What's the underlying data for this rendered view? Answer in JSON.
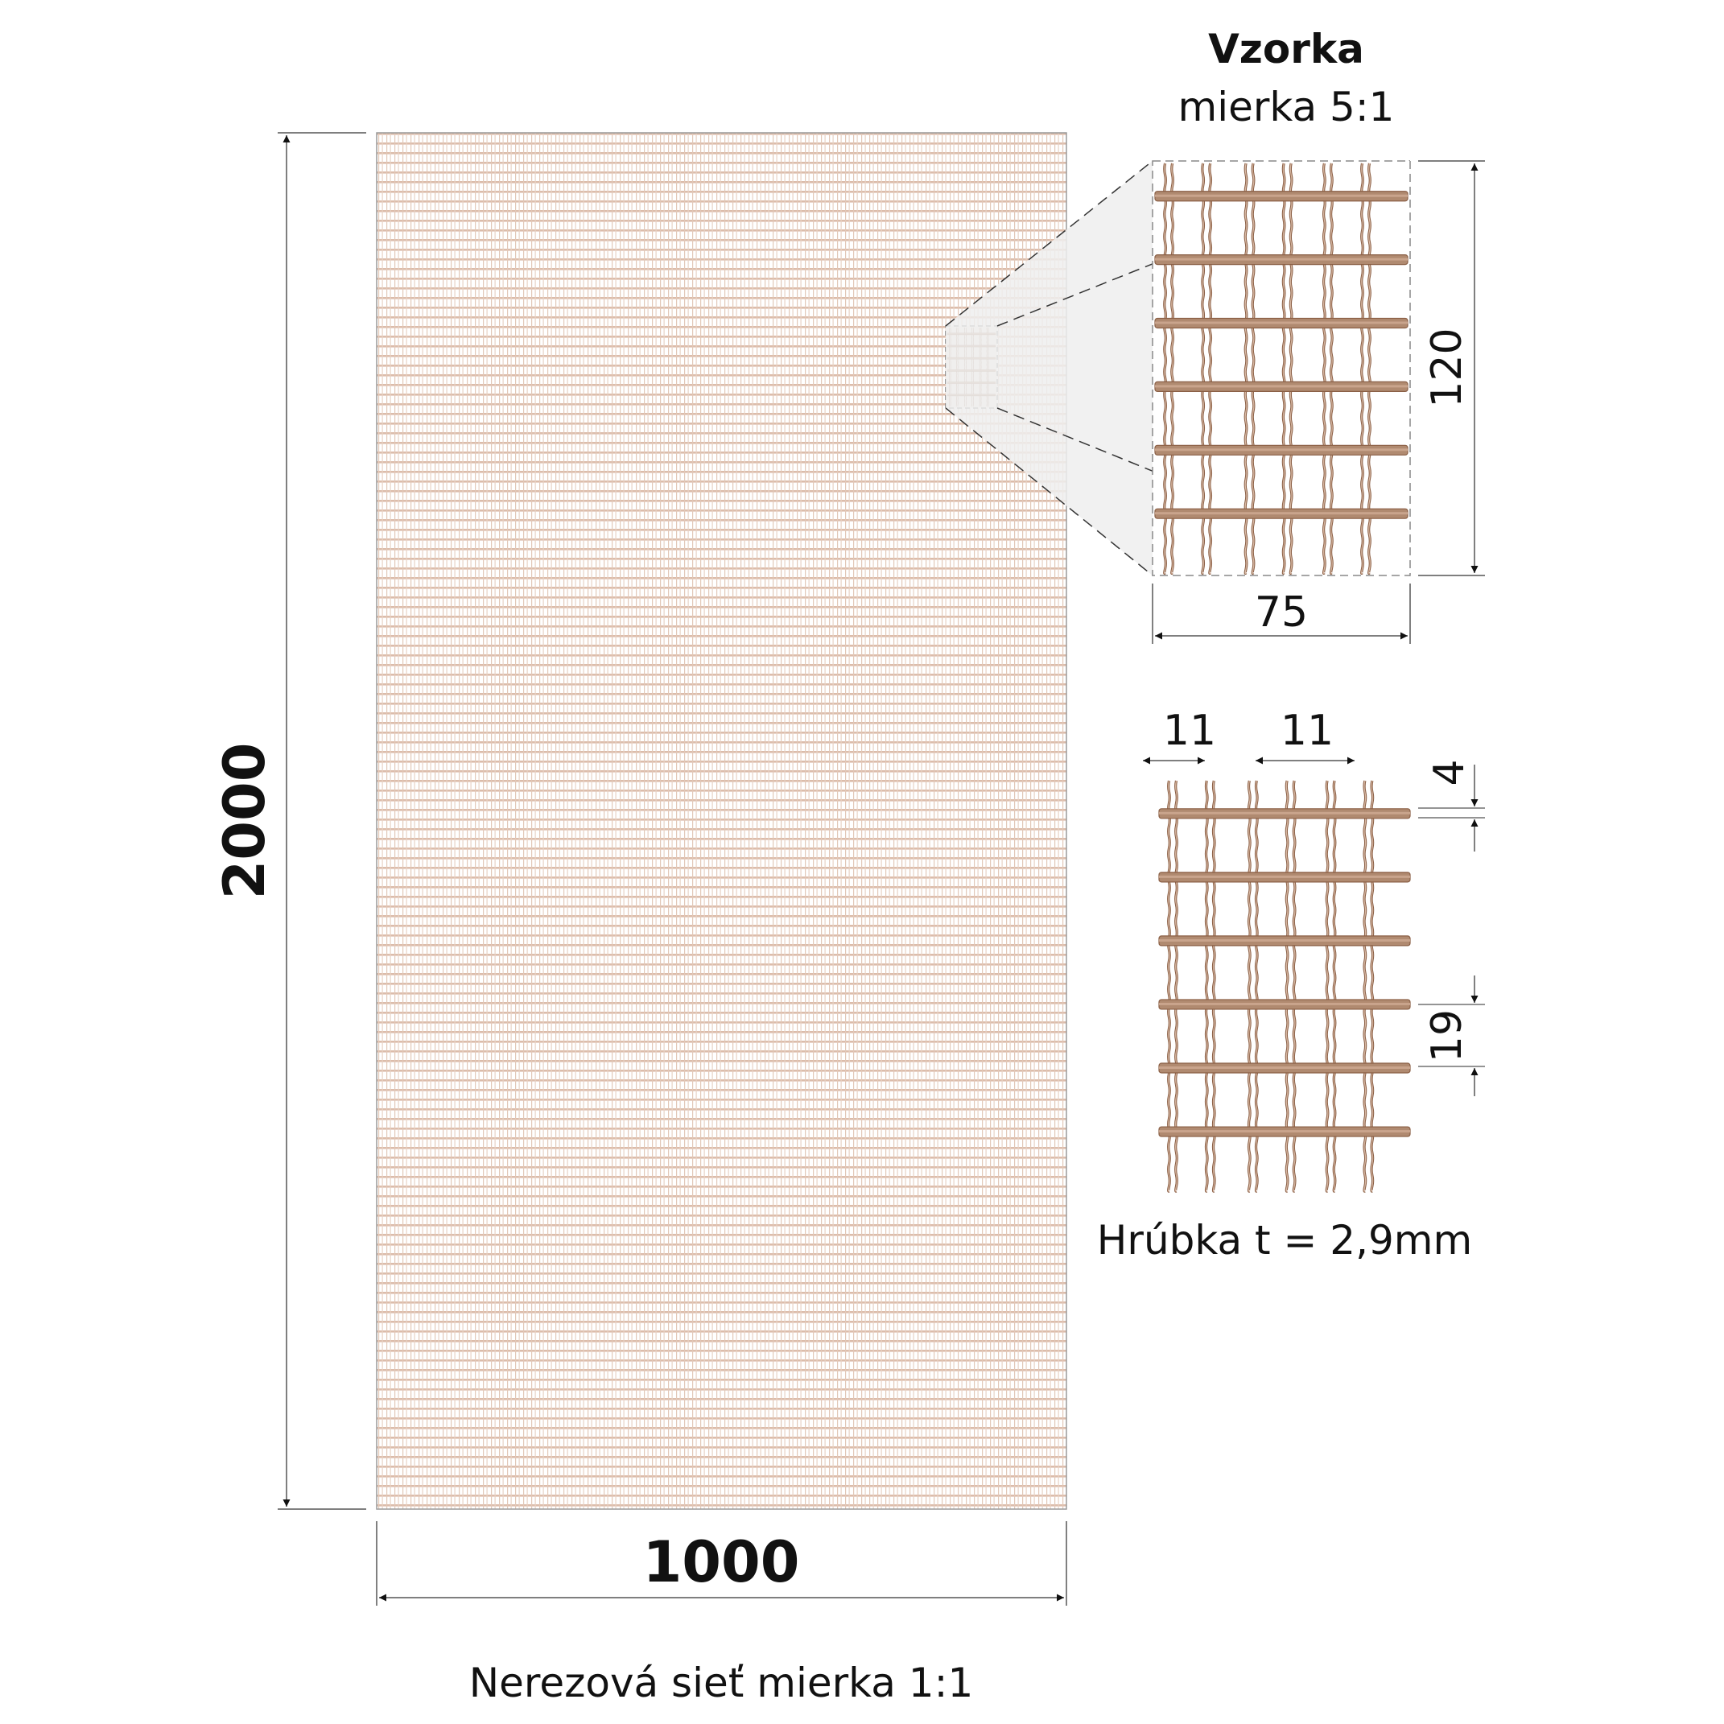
{
  "sample": {
    "title": "Vzorka",
    "scale": "mierka 5:1"
  },
  "panel": {
    "caption": "Nerezová sieť mierka 1:1",
    "height_label": "2000",
    "width_label": "1000"
  },
  "sample_dims": {
    "height_label": "120",
    "width_label": "75"
  },
  "detail_dims": {
    "pitch_a_label": "11",
    "pitch_b_label": "11",
    "wire_label": "4",
    "spacing_label": "19"
  },
  "thickness": {
    "label": "Hrúbka t = 2,9mm"
  },
  "colors": {
    "wire": "#b08a70",
    "wire_dark": "#8a5f45",
    "mesh_fine": "#d8b8a6",
    "shade": "#ececec"
  }
}
